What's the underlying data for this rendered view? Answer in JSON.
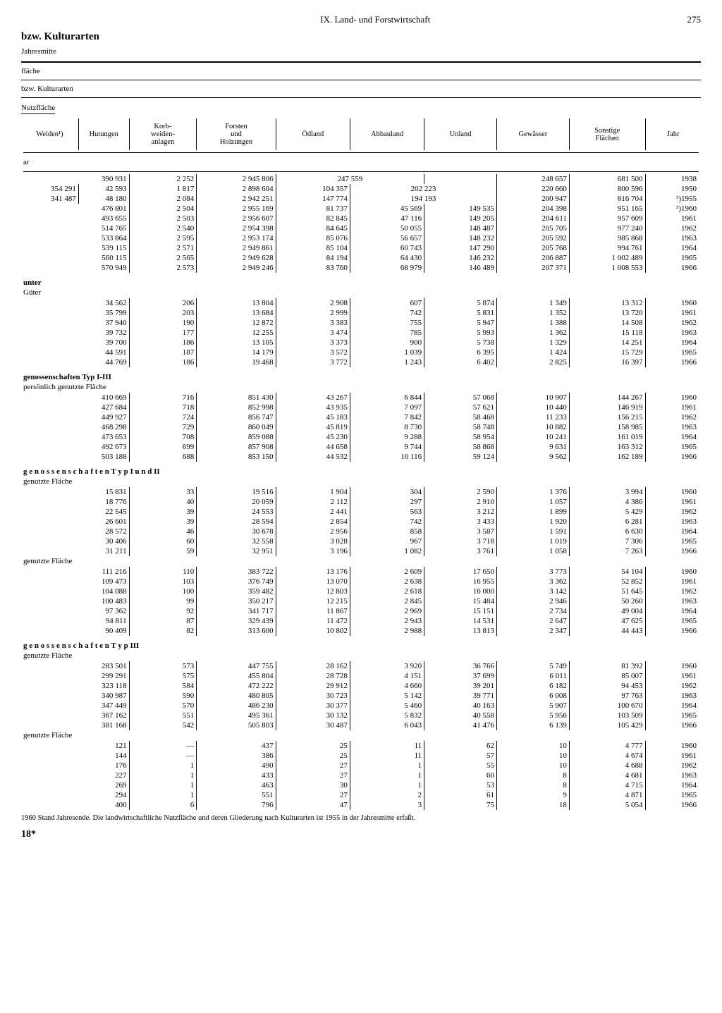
{
  "header": {
    "section": "IX. Land- und Forstwirtschaft",
    "page": "275"
  },
  "title": "bzw. Kulturarten",
  "subtitle": "Jahresmitte",
  "group_labels": {
    "a": "fläche",
    "b": "bzw. Kulturarten",
    "c": "Nutzfläche"
  },
  "columns": [
    "Weiden¹)",
    "Hutungen",
    "Korb-\nweiden-\nanlagen",
    "Forsten\nund\nHolzungen",
    "Ödland",
    "Abbauland",
    "Unland",
    "Gewässer",
    "Sonstige\nFlächen",
    "Jahr"
  ],
  "unit": "ar",
  "sections": [
    {
      "label": "",
      "sub": "",
      "rows": [
        {
          "c1": "",
          "c1b": "390 931",
          "c2": "",
          "c3": "2 252",
          "c4": "2 945 806",
          "c5": "",
          "c5b": "247 559",
          "c6": "",
          "c7": "",
          "c8": "248 657",
          "c9": "681 500",
          "c10": "1938"
        },
        {
          "c1": "354 291",
          "c2": "42 593",
          "c3": "1 817",
          "c4": "2 898 604",
          "c5": "104 357",
          "c5b": "",
          "c6": "202 223",
          "c6b": "",
          "c7": "",
          "c8": "220 660",
          "c9": "800 596",
          "c10": "1950"
        },
        {
          "c1": "341 487",
          "c2": "48 180",
          "c3": "2 084",
          "c4": "2 942 251",
          "c5": "147 774",
          "c6": "194 193",
          "c6b": "",
          "c7": "",
          "c8": "200 947",
          "c9": "816 704",
          "c10": "³)1955"
        },
        {
          "c1": "",
          "c1b": "476 801",
          "c2": "",
          "c3": "2 504",
          "c4": "2 955 169",
          "c5": "81 737",
          "c6": "45 569",
          "c7": "149 535",
          "c8": "204 398",
          "c9": "951 165",
          "c10": "³)1960"
        },
        {
          "c1": "",
          "c1b": "493 655",
          "c2": "",
          "c3": "2 503",
          "c4": "2 956 607",
          "c5": "82 845",
          "c6": "47 116",
          "c7": "149 205",
          "c8": "204 611",
          "c9": "957 609",
          "c10": "1961"
        },
        {
          "c1": "",
          "c1b": "514 765",
          "c2": "",
          "c3": "2 540",
          "c4": "2 954 398",
          "c5": "84 645",
          "c6": "50 055",
          "c7": "148 487",
          "c8": "205 705",
          "c9": "977 240",
          "c10": "1962"
        },
        {
          "c1": "",
          "c1b": "533 864",
          "c2": "",
          "c3": "2 595",
          "c4": "2 953 174",
          "c5": "85 076",
          "c6": "56 657",
          "c7": "148 232",
          "c8": "205 592",
          "c9": "985 868",
          "c10": "1963"
        },
        {
          "c1": "",
          "c1b": "539 115",
          "c2": "",
          "c3": "2 571",
          "c4": "2 949 861",
          "c5": "85 104",
          "c6": "60 743",
          "c7": "147 290",
          "c8": "205 768",
          "c9": "994 761",
          "c10": "1964"
        },
        {
          "c1": "",
          "c1b": "560 115",
          "c2": "",
          "c3": "2 565",
          "c4": "2 949 628",
          "c5": "84 194",
          "c6": "64 430",
          "c7": "146 232",
          "c8": "206 887",
          "c9": "1 002 489",
          "c10": "1965"
        },
        {
          "c1": "",
          "c1b": "570 949",
          "c2": "",
          "c3": "2 573",
          "c4": "2 949 246",
          "c5": "83 760",
          "c6": "68 979",
          "c7": "146 489",
          "c8": "207 371",
          "c9": "1 008 553",
          "c10": "1966"
        }
      ]
    },
    {
      "label": "unter",
      "sub": "Güter",
      "rows": [
        {
          "c1b": "34 562",
          "c3": "206",
          "c4": "13 804",
          "c5": "2 908",
          "c6": "607",
          "c7": "5 874",
          "c8": "1 349",
          "c9": "13 312",
          "c10": "1960"
        },
        {
          "c1b": "35 799",
          "c3": "203",
          "c4": "13 684",
          "c5": "2 999",
          "c6": "742",
          "c7": "5 831",
          "c8": "1 352",
          "c9": "13 720",
          "c10": "1961"
        },
        {
          "c1b": "37 940",
          "c3": "190",
          "c4": "12 872",
          "c5": "3 383",
          "c6": "755",
          "c7": "5 947",
          "c8": "1 388",
          "c9": "14 508",
          "c10": "1962"
        },
        {
          "c1b": "39 732",
          "c3": "177",
          "c4": "12 255",
          "c5": "3 474",
          "c6": "785",
          "c7": "5 993",
          "c8": "1 362",
          "c9": "15 118",
          "c10": "1963"
        },
        {
          "c1b": "39 700",
          "c3": "186",
          "c4": "13 105",
          "c5": "3 373",
          "c6": "900",
          "c7": "5 738",
          "c8": "1 329",
          "c9": "14 251",
          "c10": "1964"
        },
        {
          "c1b": "44 591",
          "c3": "187",
          "c4": "14 179",
          "c5": "3 572",
          "c6": "1 039",
          "c7": "6 395",
          "c8": "1 424",
          "c9": "15 729",
          "c10": "1965"
        },
        {
          "c1b": "44 769",
          "c3": "186",
          "c4": "19 468",
          "c5": "3 772",
          "c6": "1 243",
          "c7": "6 402",
          "c8": "2 825",
          "c9": "16 397",
          "c10": "1966"
        }
      ]
    },
    {
      "label": "genossenschaften Typ I-III",
      "sub": "persönlich genutzte Fläche",
      "rows": [
        {
          "c1b": "410 669",
          "c3": "716",
          "c4": "851 430",
          "c5": "43 267",
          "c6": "6 844",
          "c7": "57 068",
          "c8": "10 907",
          "c9": "144 267",
          "c10": "1960"
        },
        {
          "c1b": "427 684",
          "c3": "718",
          "c4": "852 998",
          "c5": "43 935",
          "c6": "7 097",
          "c7": "57 621",
          "c8": "10 440",
          "c9": "146 919",
          "c10": "1961"
        },
        {
          "c1b": "449 927",
          "c3": "724",
          "c4": "856 747",
          "c5": "45 183",
          "c6": "7 842",
          "c7": "58 468",
          "c8": "11 233",
          "c9": "156 215",
          "c10": "1962"
        },
        {
          "c1b": "468 298",
          "c3": "729",
          "c4": "860 049",
          "c5": "45 819",
          "c6": "8 730",
          "c7": "58 748",
          "c8": "10 882",
          "c9": "158 985",
          "c10": "1963"
        },
        {
          "c1b": "473 653",
          "c3": "708",
          "c4": "859 088",
          "c5": "45 230",
          "c6": "9 288",
          "c7": "58 954",
          "c8": "10 241",
          "c9": "161 019",
          "c10": "1964"
        },
        {
          "c1b": "492 673",
          "c3": "699",
          "c4": "857 908",
          "c5": "44 658",
          "c6": "9 744",
          "c7": "58 868",
          "c8": "9 631",
          "c9": "163 312",
          "c10": "1965"
        },
        {
          "c1b": "503 188",
          "c3": "688",
          "c4": "853 150",
          "c5": "44 532",
          "c6": "10 116",
          "c7": "59 124",
          "c8": "9 562",
          "c9": "162 189",
          "c10": "1966"
        }
      ]
    },
    {
      "label": "g e n o s s e n s c h a f t e n  T y p  I u n d  II",
      "sub": "genutzte Fläche",
      "rows": [
        {
          "c1b": "15 831",
          "c3": "33",
          "c4": "19 516",
          "c5": "1 904",
          "c6": "304",
          "c7": "2 590",
          "c8": "1 376",
          "c9": "3 994",
          "c10": "1960"
        },
        {
          "c1b": "18 776",
          "c3": "40",
          "c4": "20 059",
          "c5": "2 112",
          "c6": "297",
          "c7": "2 910",
          "c8": "1 057",
          "c9": "4 386",
          "c10": "1961"
        },
        {
          "c1b": "22 545",
          "c3": "39",
          "c4": "24 553",
          "c5": "2 441",
          "c6": "563",
          "c7": "3 212",
          "c8": "1 899",
          "c9": "5 429",
          "c10": "1962"
        },
        {
          "c1b": "26 601",
          "c3": "39",
          "c4": "28 594",
          "c5": "2 854",
          "c6": "742",
          "c7": "3 433",
          "c8": "1 920",
          "c9": "6 281",
          "c10": "1963"
        },
        {
          "c1b": "28 572",
          "c3": "46",
          "c4": "30 678",
          "c5": "2 956",
          "c6": "858",
          "c7": "3 587",
          "c8": "1 591",
          "c9": "6 630",
          "c10": "1964"
        },
        {
          "c1b": "30 406",
          "c3": "60",
          "c4": "32 558",
          "c5": "3 028",
          "c6": "967",
          "c7": "3 718",
          "c8": "1 019",
          "c9": "7 306",
          "c10": "1965"
        },
        {
          "c1b": "31 211",
          "c3": "59",
          "c4": "32 951",
          "c5": "3 196",
          "c6": "1 082",
          "c7": "3 761",
          "c8": "1 058",
          "c9": "7 263",
          "c10": "1966"
        }
      ]
    },
    {
      "label": "",
      "sub": "genutzte Fläche",
      "rows": [
        {
          "c1b": "111 216",
          "c3": "110",
          "c4": "383 722",
          "c5": "13 176",
          "c6": "2 609",
          "c7": "17 650",
          "c8": "3 773",
          "c9": "54 104",
          "c10": "1960"
        },
        {
          "c1b": "109 473",
          "c3": "103",
          "c4": "376 749",
          "c5": "13 070",
          "c6": "2 638",
          "c7": "16 955",
          "c8": "3 362",
          "c9": "52 852",
          "c10": "1961"
        },
        {
          "c1b": "104 088",
          "c3": "100",
          "c4": "359 482",
          "c5": "12 803",
          "c6": "2 618",
          "c7": "16 000",
          "c8": "3 142",
          "c9": "51 645",
          "c10": "1962"
        },
        {
          "c1b": "100 483",
          "c3": "99",
          "c4": "350 217",
          "c5": "12 215",
          "c6": "2 845",
          "c7": "15 484",
          "c8": "2 946",
          "c9": "50 260",
          "c10": "1963"
        },
        {
          "c1b": "97 362",
          "c3": "92",
          "c4": "341 717",
          "c5": "11 867",
          "c6": "2 969",
          "c7": "15 151",
          "c8": "2 734",
          "c9": "49 004",
          "c10": "1964"
        },
        {
          "c1b": "94 811",
          "c3": "87",
          "c4": "329 439",
          "c5": "11 472",
          "c6": "2 943",
          "c7": "14 531",
          "c8": "2 647",
          "c9": "47 625",
          "c10": "1965"
        },
        {
          "c1b": "90 409",
          "c3": "82",
          "c4": "313 600",
          "c5": "10 802",
          "c6": "2 988",
          "c7": "13 813",
          "c8": "2 347",
          "c9": "44 443",
          "c10": "1966"
        }
      ]
    },
    {
      "label": "g e n o s s e n s c h a f t e n  T y p  III",
      "sub": "genutzte Fläche",
      "rows": [
        {
          "c1b": "283 501",
          "c3": "573",
          "c4": "447 755",
          "c5": "28 162",
          "c6": "3 920",
          "c7": "36 766",
          "c8": "5 749",
          "c9": "81 392",
          "c10": "1960"
        },
        {
          "c1b": "299 291",
          "c3": "575",
          "c4": "455 804",
          "c5": "28 728",
          "c6": "4 151",
          "c7": "37 699",
          "c8": "6 011",
          "c9": "85 007",
          "c10": "1961"
        },
        {
          "c1b": "323 118",
          "c3": "584",
          "c4": "472 222",
          "c5": "29 912",
          "c6": "4 660",
          "c7": "39 201",
          "c8": "6 182",
          "c9": "94 453",
          "c10": "1962"
        },
        {
          "c1b": "340 987",
          "c3": "590",
          "c4": "480 805",
          "c5": "30 723",
          "c6": "5 142",
          "c7": "39 771",
          "c8": "6 008",
          "c9": "97 763",
          "c10": "1963"
        },
        {
          "c1b": "347 449",
          "c3": "570",
          "c4": "486 230",
          "c5": "30 377",
          "c6": "5 460",
          "c7": "40 163",
          "c8": "5 907",
          "c9": "100 670",
          "c10": "1964"
        },
        {
          "c1b": "367 162",
          "c3": "551",
          "c4": "495 361",
          "c5": "30 132",
          "c6": "5 832",
          "c7": "40 558",
          "c8": "5 956",
          "c9": "103 509",
          "c10": "1965"
        },
        {
          "c1b": "381 168",
          "c3": "542",
          "c4": "505 803",
          "c5": "30 487",
          "c6": "6 043",
          "c7": "41 476",
          "c8": "6 139",
          "c9": "105 429",
          "c10": "1966"
        }
      ]
    },
    {
      "label": "",
      "sub": "genutzte Fläche",
      "rows": [
        {
          "c1b": "121",
          "c3": "—",
          "c4": "437",
          "c5": "25",
          "c6": "11",
          "c7": "62",
          "c8": "10",
          "c9": "4 777",
          "c10": "1960"
        },
        {
          "c1b": "144",
          "c3": "—",
          "c4": "386",
          "c5": "25",
          "c6": "11",
          "c7": "57",
          "c8": "10",
          "c9": "4 674",
          "c10": "1961"
        },
        {
          "c1b": "176",
          "c3": "1",
          "c4": "490",
          "c5": "27",
          "c6": "1",
          "c7": "55",
          "c8": "10",
          "c9": "4 688",
          "c10": "1962"
        },
        {
          "c1b": "227",
          "c3": "1",
          "c4": "433",
          "c5": "27",
          "c6": "1",
          "c7": "60",
          "c8": "8",
          "c9": "4 681",
          "c10": "1963"
        },
        {
          "c1b": "269",
          "c3": "1",
          "c4": "463",
          "c5": "30",
          "c6": "1",
          "c7": "53",
          "c8": "8",
          "c9": "4 715",
          "c10": "1964"
        },
        {
          "c1b": "294",
          "c3": "1",
          "c4": "551",
          "c5": "27",
          "c6": "2",
          "c7": "61",
          "c8": "9",
          "c9": "4 871",
          "c10": "1965"
        },
        {
          "c1b": "400",
          "c3": "6",
          "c4": "796",
          "c5": "47",
          "c6": "3",
          "c7": "75",
          "c8": "18",
          "c9": "5 054",
          "c10": "1966"
        }
      ]
    }
  ],
  "footnote": "1960 Stand Jahresende. Die landwirtschaftliche Nutzfläche und deren Gliederung nach Kulturarten ist 1955 in der Jahresmitte erfaßt.",
  "signature": "18*"
}
